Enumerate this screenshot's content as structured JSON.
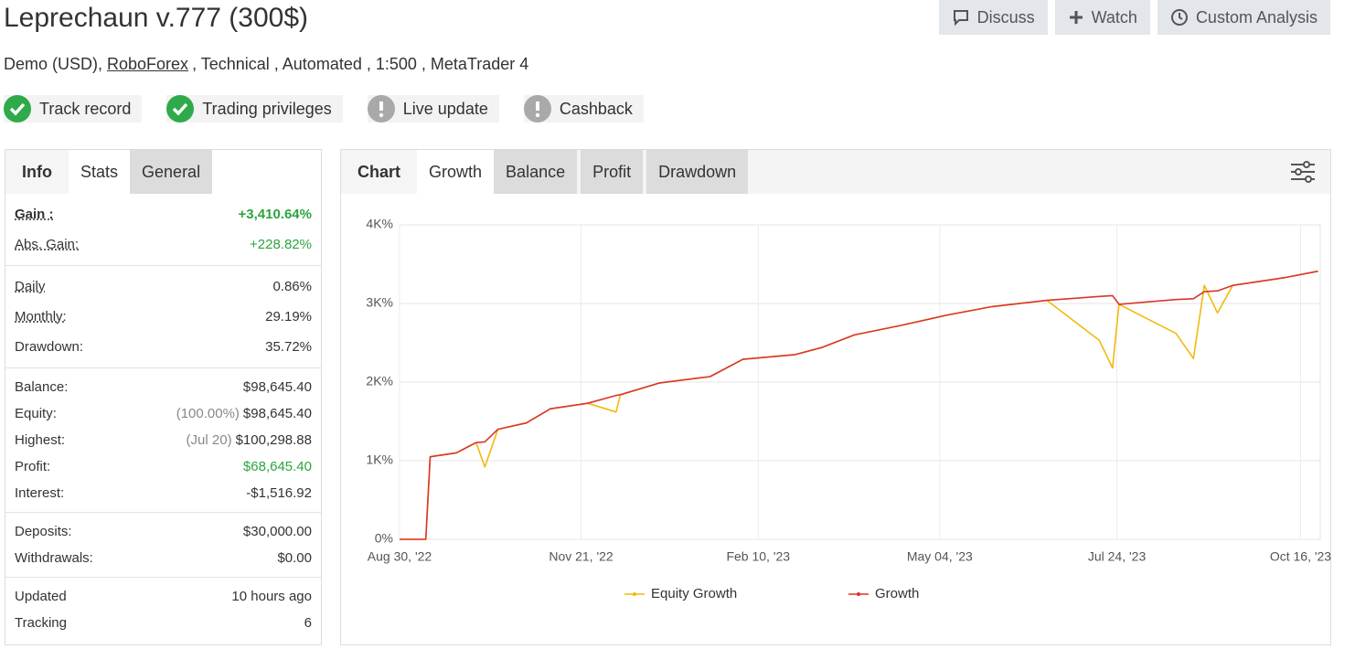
{
  "header": {
    "title": "Leprechaun v.777 (300$)",
    "details": [
      "Demo (USD),",
      "RoboForex",
      ", Technical , Automated , 1:500 , MetaTrader 4"
    ],
    "actions": [
      "Discuss",
      "Watch",
      "Custom Analysis"
    ]
  },
  "badges": [
    {
      "label": "Track record",
      "verified": true
    },
    {
      "label": "Trading privileges",
      "verified": true
    },
    {
      "label": "Live update",
      "verified": false
    },
    {
      "label": "Cashback",
      "verified": false
    }
  ],
  "stats_panel": {
    "tabs": [
      "Info",
      "Stats",
      "General"
    ],
    "groups": [
      [
        {
          "label": "Gain :",
          "value": "+3,410.64%"
        },
        {
          "label": "Abs. Gain:",
          "value": "+228.82%"
        }
      ],
      [
        {
          "label": "Daily",
          "value": "0.86%"
        },
        {
          "label": "Monthly:",
          "value": "29.19%"
        },
        {
          "label": "Drawdown:",
          "value": "35.72%"
        }
      ],
      [
        {
          "label": "Balance:",
          "value": "$98,645.40"
        },
        {
          "label": "Equity:",
          "note": "(100.00%)",
          "value": "$98,645.40"
        },
        {
          "label": "Highest:",
          "note": "(Jul 20)",
          "value": "$100,298.88"
        },
        {
          "label": "Profit:",
          "value": "$68,645.40"
        },
        {
          "label": "Interest:",
          "value": "-$1,516.92"
        }
      ],
      [
        {
          "label": "Deposits:",
          "value": "$30,000.00"
        },
        {
          "label": "Withdrawals:",
          "value": "$0.00"
        }
      ],
      [
        {
          "label": "Updated",
          "value": "10 hours ago"
        },
        {
          "label": "Tracking",
          "value": "6"
        }
      ]
    ]
  },
  "chart_panel": {
    "tabs": [
      "Chart",
      "Growth",
      "Balance",
      "Profit",
      "Drawdown"
    ]
  },
  "chart_data": {
    "type": "line",
    "x": [
      "2022-08-30",
      "2022-09-11",
      "2022-09-13",
      "2022-09-25",
      "2022-10-04",
      "2022-10-08",
      "2022-10-14",
      "2022-10-27",
      "2022-11-07",
      "2022-11-24",
      "2022-12-07",
      "2022-12-09",
      "2022-12-27",
      "2023-01-19",
      "2023-02-03",
      "2023-02-27",
      "2023-03-11",
      "2023-03-26",
      "2023-04-16",
      "2023-05-07",
      "2023-05-28",
      "2023-06-22",
      "2023-07-16",
      "2023-07-22",
      "2023-07-25",
      "2023-08-20",
      "2023-08-28",
      "2023-09-02",
      "2023-09-08",
      "2023-09-15",
      "2023-10-09",
      "2023-10-24"
    ],
    "series": [
      {
        "name": "Equity Growth",
        "color": "#f2b90c",
        "values": [
          0,
          0,
          1050,
          1100,
          1230,
          920,
          1400,
          1480,
          1660,
          1730,
          1620,
          1840,
          1990,
          2070,
          2290,
          2350,
          2440,
          2600,
          2720,
          2850,
          2960,
          3040,
          2530,
          2180,
          2990,
          2620,
          2300,
          3230,
          2880,
          3230,
          3330,
          3410
        ]
      },
      {
        "name": "Growth",
        "color": "#d9362b",
        "values": [
          0,
          0,
          1050,
          1100,
          1230,
          1240,
          1400,
          1480,
          1660,
          1730,
          1830,
          1840,
          1990,
          2070,
          2290,
          2350,
          2440,
          2600,
          2720,
          2850,
          2960,
          3040,
          3090,
          3100,
          2990,
          3050,
          3060,
          3150,
          3160,
          3230,
          3330,
          3410
        ]
      }
    ],
    "xlim": [
      "2022-08-30",
      "2023-10-25"
    ],
    "xticks": [
      {
        "value": "2022-08-30",
        "label": "Aug 30, '22"
      },
      {
        "value": "2022-11-21",
        "label": "Nov 21, '22"
      },
      {
        "value": "2023-02-10",
        "label": "Feb 10, '23"
      },
      {
        "value": "2023-05-04",
        "label": "May 04, '23"
      },
      {
        "value": "2023-07-24",
        "label": "Jul 24, '23"
      },
      {
        "value": "2023-10-16",
        "label": "Oct 16, '23"
      }
    ],
    "ylim": [
      0,
      4000
    ],
    "yticks": [
      {
        "value": 0,
        "label": "0%"
      },
      {
        "value": 1000,
        "label": "1K%"
      },
      {
        "value": 2000,
        "label": "2K%"
      },
      {
        "value": 3000,
        "label": "3K%"
      },
      {
        "value": 4000,
        "label": "4K%"
      }
    ],
    "grid": true,
    "legend": "bottom"
  }
}
